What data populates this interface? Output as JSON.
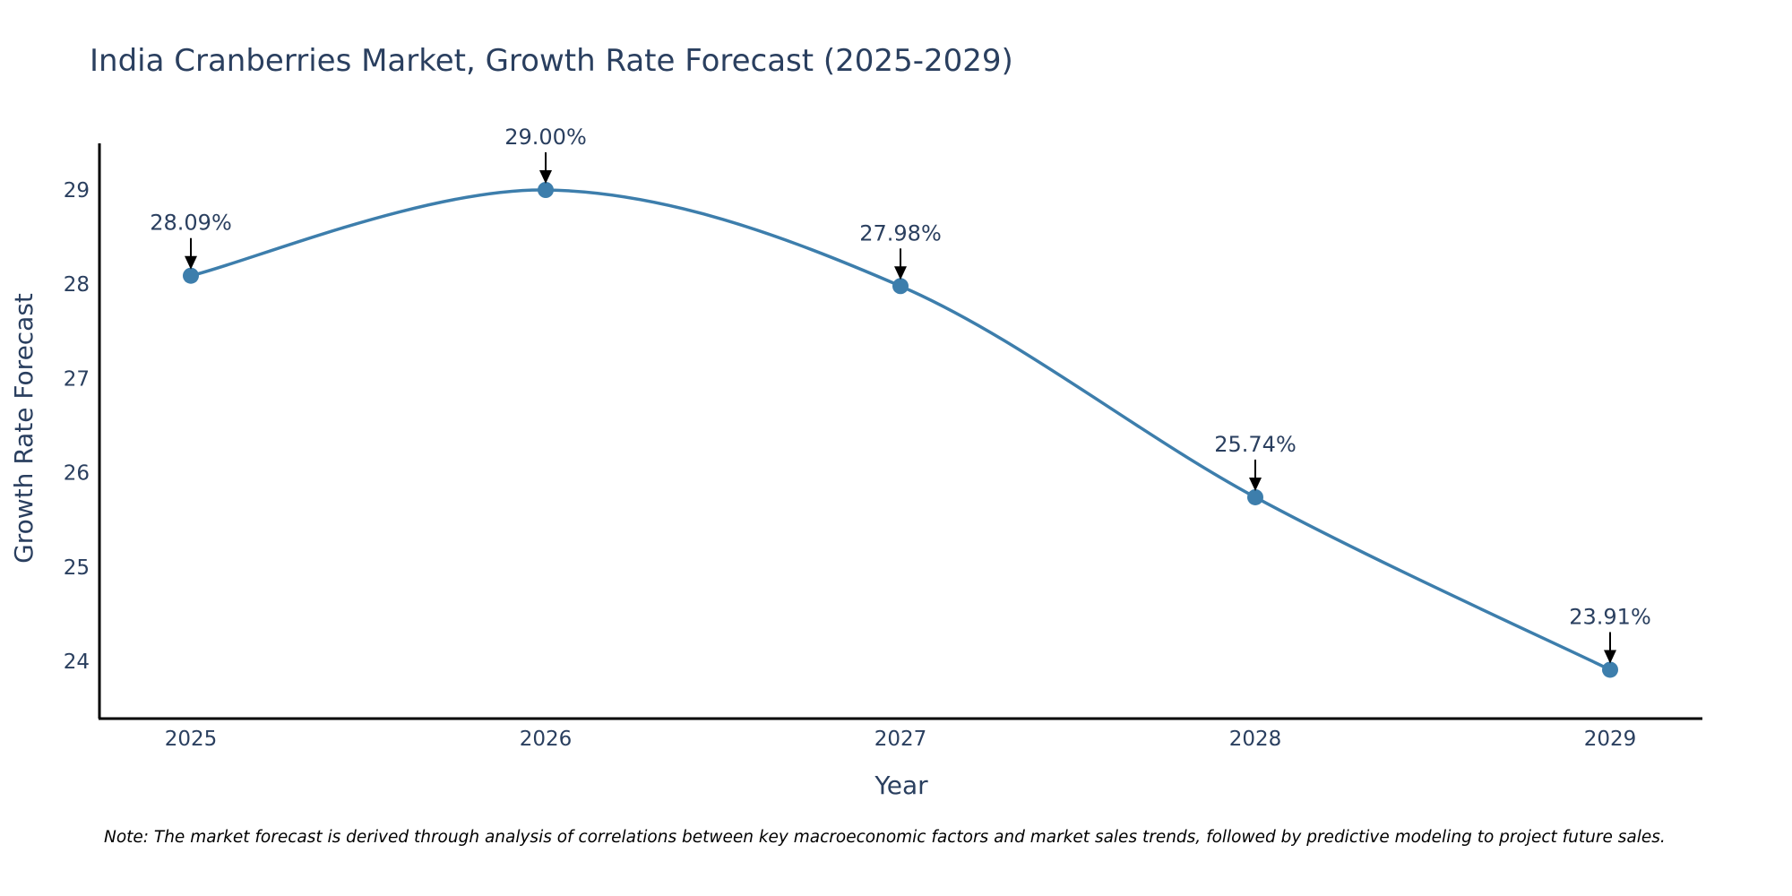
{
  "chart_data": {
    "type": "line",
    "title": "India Cranberries Market, Growth Rate Forecast (2025-2029)",
    "xlabel": "Year",
    "ylabel": "Growth Rate Forecast",
    "x": [
      2025,
      2026,
      2027,
      2028,
      2029
    ],
    "x_tick_labels": [
      "2025",
      "2026",
      "2027",
      "2028",
      "2029"
    ],
    "y_ticks": [
      24,
      25,
      26,
      27,
      28,
      29
    ],
    "y_tick_labels": [
      "24",
      "25",
      "26",
      "27",
      "28",
      "29"
    ],
    "ylim": [
      23.4,
      29.5
    ],
    "series": [
      {
        "name": "Growth Rate Forecast",
        "values": [
          28.09,
          29.0,
          27.98,
          25.74,
          23.91
        ],
        "labels": [
          "28.09%",
          "29.00%",
          "27.98%",
          "25.74%",
          "23.91%"
        ],
        "line_shape": "spline"
      }
    ],
    "grid": false,
    "note": "Note: The market forecast is derived through analysis of correlations between key macroeconomic factors and market sales trends, followed by predictive modeling to project future sales."
  },
  "colors": {
    "series": "#3d7eac",
    "text": "#2a3f5f",
    "axis": "#000000",
    "arrow": "#000000"
  }
}
